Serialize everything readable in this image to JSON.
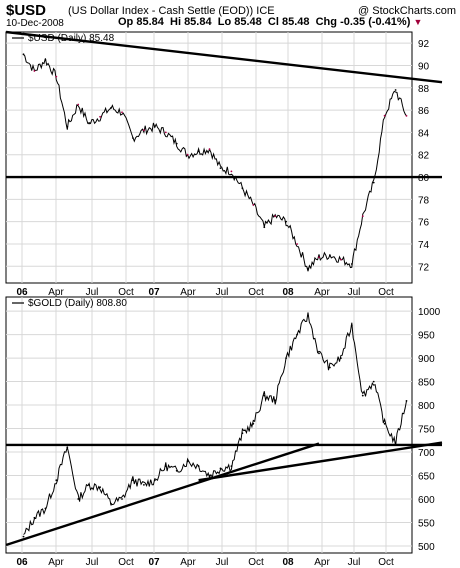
{
  "header": {
    "title": "$USD",
    "subtitle": "(US Dollar Index - Cash Settle (EOD))  ICE",
    "watermark": "@ StockCharts.com",
    "date": "10-Dec-2008",
    "quote": {
      "open_label": "Op",
      "open": "85.84",
      "high_label": "Hi",
      "high": "85.84",
      "low_label": "Lo",
      "low": "85.48",
      "close_label": "Cl",
      "close": "85.48",
      "change_label": "Chg",
      "change": "-0.35 (-0.41%)",
      "change_icon": "triangle-down-icon"
    }
  },
  "colors": {
    "price_line": "#000000",
    "down_tick": "#b0004a",
    "grid": "#d8d8d8",
    "trendline": "#000000"
  },
  "chart_data": [
    {
      "type": "line",
      "title": "$USD (Daily) 85.48",
      "legend": "$USD (Daily) 85.48",
      "x_tick_labels": [
        "06",
        "Apr",
        "Jul",
        "Oct",
        "07",
        "Apr",
        "Jul",
        "Oct",
        "08",
        "Apr",
        "Jul",
        "Oct"
      ],
      "y_ticks": [
        72,
        74,
        76,
        78,
        80,
        82,
        84,
        86,
        88,
        90,
        92
      ],
      "ylim": [
        70.5,
        93
      ],
      "grid": true,
      "x": [
        "2006-01",
        "2006-02",
        "2006-03",
        "2006-04",
        "2006-05",
        "2006-06",
        "2006-07",
        "2006-08",
        "2006-09",
        "2006-10",
        "2006-11",
        "2006-12",
        "2007-01",
        "2007-02",
        "2007-03",
        "2007-04",
        "2007-05",
        "2007-06",
        "2007-07",
        "2007-08",
        "2007-09",
        "2007-10",
        "2007-11",
        "2007-12",
        "2008-01",
        "2008-02",
        "2008-03",
        "2008-04",
        "2008-05",
        "2008-06",
        "2008-07",
        "2008-08",
        "2008-09",
        "2008-10",
        "2008-11",
        "2008-12"
      ],
      "values": [
        91.0,
        89.5,
        90.5,
        89.0,
        84.5,
        86.5,
        84.8,
        85.4,
        86.2,
        85.8,
        83.5,
        84.2,
        84.5,
        84.0,
        83.0,
        82.0,
        82.3,
        82.5,
        80.8,
        80.5,
        79.0,
        77.5,
        75.5,
        76.5,
        76.0,
        74.0,
        71.8,
        72.8,
        73.0,
        72.6,
        72.2,
        76.5,
        79.5,
        85.5,
        87.8,
        85.48
      ],
      "trendlines": [
        {
          "name": "falling-resistance",
          "start": [
            "2006-01",
            93.0
          ],
          "end": [
            "2008-12",
            88.5
          ]
        },
        {
          "name": "horizontal-support",
          "start": [
            "2006-01",
            80.0
          ],
          "end": [
            "2008-12",
            80.0
          ]
        }
      ]
    },
    {
      "type": "line",
      "title": "$GOLD (Daily) 808.80",
      "legend": "$GOLD (Daily) 808.80",
      "x_tick_labels": [
        "06",
        "Apr",
        "Jul",
        "Oct",
        "07",
        "Apr",
        "Jul",
        "Oct",
        "08",
        "Apr",
        "Jul",
        "Oct"
      ],
      "y_ticks": [
        500,
        550,
        600,
        650,
        700,
        750,
        800,
        850,
        900,
        950,
        1000
      ],
      "ylim": [
        485,
        1030
      ],
      "grid": true,
      "x": [
        "2006-01",
        "2006-02",
        "2006-03",
        "2006-04",
        "2006-05",
        "2006-06",
        "2006-07",
        "2006-08",
        "2006-09",
        "2006-10",
        "2006-11",
        "2006-12",
        "2007-01",
        "2007-02",
        "2007-03",
        "2007-04",
        "2007-05",
        "2007-06",
        "2007-07",
        "2007-08",
        "2007-09",
        "2007-10",
        "2007-11",
        "2007-12",
        "2008-01",
        "2008-02",
        "2008-03",
        "2008-04",
        "2008-05",
        "2008-06",
        "2008-07",
        "2008-08",
        "2008-09",
        "2008-10",
        "2008-11",
        "2008-12"
      ],
      "values": [
        520,
        560,
        580,
        640,
        710,
        600,
        630,
        625,
        590,
        600,
        640,
        630,
        640,
        670,
        660,
        680,
        670,
        650,
        665,
        670,
        740,
        760,
        820,
        810,
        900,
        950,
        990,
        910,
        880,
        900,
        970,
        820,
        850,
        760,
        720,
        808.8
      ],
      "trendlines": [
        {
          "name": "long-term-support",
          "start": [
            "2006-01",
            502
          ],
          "end": [
            "2008-04",
            718
          ]
        },
        {
          "name": "horizontal-support",
          "start": [
            "2006-01",
            715
          ],
          "end": [
            "2008-12",
            715
          ]
        },
        {
          "name": "upper-support",
          "start": [
            "2007-05",
            640
          ],
          "end": [
            "2008-12",
            720
          ]
        }
      ]
    }
  ]
}
